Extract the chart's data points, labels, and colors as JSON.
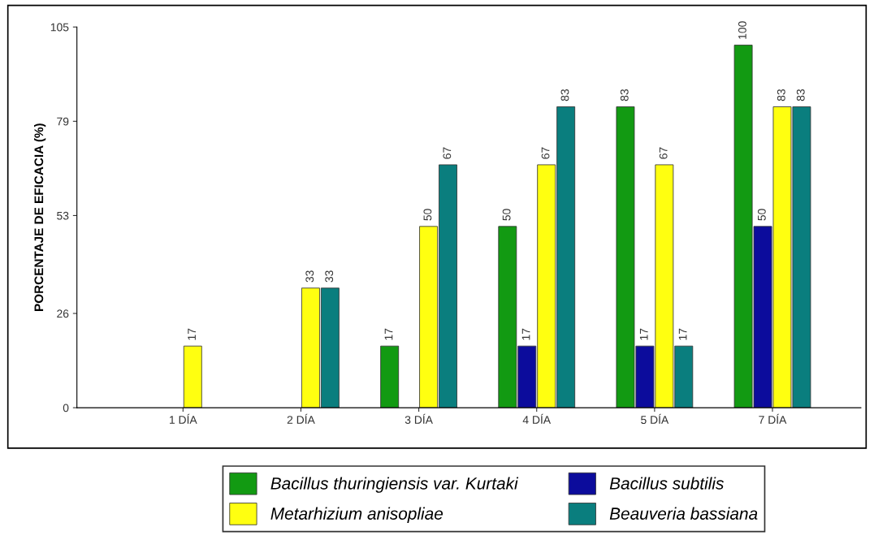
{
  "chart_data": {
    "type": "bar",
    "ylabel": "PORCENTAJE DE EFICACIA (%)",
    "categories": [
      "1 DÍA",
      "2 DÍA",
      "3 DÍA",
      "4 DÍA",
      "5 DÍA",
      "7 DÍA"
    ],
    "series": [
      {
        "name": "Bacillus thuringiensis var. Kurtaki",
        "color": "#129a12",
        "values": [
          null,
          null,
          17,
          50,
          83,
          100
        ]
      },
      {
        "name": "Bacillus subtilis",
        "color": "#0c0c9c",
        "values": [
          null,
          null,
          null,
          17,
          17,
          50
        ]
      },
      {
        "name": "Metarhizium anisopliae",
        "color": "#ffff10",
        "values": [
          17,
          33,
          50,
          67,
          67,
          83
        ]
      },
      {
        "name": "Beauveria bassiana",
        "color": "#0a7e7e",
        "values": [
          null,
          33,
          67,
          83,
          17,
          83
        ]
      }
    ],
    "ylim": [
      0,
      105
    ],
    "yticks": [
      0,
      26,
      53,
      79,
      105
    ],
    "grid": false,
    "legend": "bottom",
    "data_labels": true
  }
}
